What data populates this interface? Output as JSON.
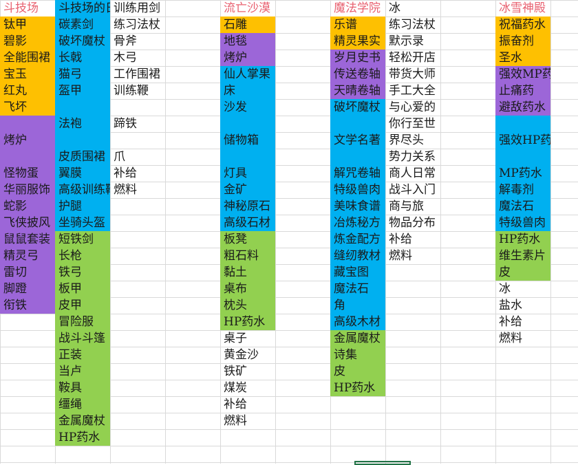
{
  "columns": [
    {
      "cells": [
        {
          "text": "斗技场",
          "hdr": true
        },
        {
          "text": "钛甲",
          "c": "y"
        },
        {
          "text": "碧影",
          "c": "y"
        },
        {
          "text": "全能围裙",
          "c": "y"
        },
        {
          "text": "宝玉",
          "c": "y"
        },
        {
          "text": "红丸",
          "c": "y"
        },
        {
          "text": "飞坏",
          "c": "y"
        },
        {
          "text": "烤炉",
          "c": "p",
          "span": 3
        },
        {
          "text": "怪物蛋",
          "c": "p"
        },
        {
          "text": "华丽服饰",
          "c": "p"
        },
        {
          "text": "蛇影",
          "c": "p"
        },
        {
          "text": "飞侠披风",
          "c": "p"
        },
        {
          "text": "鼠鼠套装",
          "c": "p"
        },
        {
          "text": "精灵弓",
          "c": "p"
        },
        {
          "text": "雷切",
          "c": "p"
        },
        {
          "text": "脚蹬",
          "c": "p"
        },
        {
          "text": "衔铁",
          "c": "p"
        }
      ]
    },
    {
      "cells": [
        {
          "text": "斗技场的日落",
          "c": "b"
        },
        {
          "text": "碳素剑",
          "c": "b"
        },
        {
          "text": "破坏魔杖",
          "c": "b"
        },
        {
          "text": "长戟",
          "c": "b"
        },
        {
          "text": "猫弓",
          "c": "b"
        },
        {
          "text": "盔甲",
          "c": "b"
        },
        {
          "text": "法袍",
          "c": "b",
          "span": 3
        },
        {
          "text": "皮质围裙",
          "c": "b"
        },
        {
          "text": "翼膜",
          "c": "b"
        },
        {
          "text": "高级训练鞭",
          "c": "b"
        },
        {
          "text": "护腿",
          "c": "b"
        },
        {
          "text": "坐骑头盔",
          "c": "b"
        },
        {
          "text": "短铁剑",
          "c": "g"
        },
        {
          "text": "长枪",
          "c": "g"
        },
        {
          "text": "铁弓",
          "c": "g"
        },
        {
          "text": "板甲",
          "c": "g"
        },
        {
          "text": "皮甲",
          "c": "g"
        },
        {
          "text": "冒险服",
          "c": "g"
        },
        {
          "text": "战斗斗篷",
          "c": "g"
        },
        {
          "text": "正装",
          "c": "g"
        },
        {
          "text": "当卢",
          "c": "g"
        },
        {
          "text": "鞍具",
          "c": "g"
        },
        {
          "text": "缰绳",
          "c": "g"
        },
        {
          "text": "金属魔杖",
          "c": "g"
        },
        {
          "text": "HP药水",
          "c": "g"
        }
      ]
    },
    {
      "cells": [
        {
          "text": "训练用剑"
        },
        {
          "text": "练习法杖"
        },
        {
          "text": "骨斧"
        },
        {
          "text": "木弓"
        },
        {
          "text": "工作围裙"
        },
        {
          "text": "训练鞭"
        },
        {
          "text": "蹄铁",
          "span": 3
        },
        {
          "text": "爪"
        },
        {
          "text": "补给"
        },
        {
          "text": "燃料"
        }
      ]
    },
    {
      "cells": []
    },
    {
      "cells": [
        {
          "text": "流亡沙漠",
          "hdr": true
        },
        {
          "text": "石雕",
          "c": "y"
        },
        {
          "text": "地毯",
          "c": "p"
        },
        {
          "text": "烤炉",
          "c": "p"
        },
        {
          "text": "仙人掌果",
          "c": "b"
        },
        {
          "text": "床",
          "c": "b"
        },
        {
          "text": "沙发",
          "c": "b"
        },
        {
          "text": "储物箱",
          "c": "b",
          "span": 3
        },
        {
          "text": "灯具",
          "c": "b"
        },
        {
          "text": "金矿",
          "c": "b"
        },
        {
          "text": "神秘原石",
          "c": "b"
        },
        {
          "text": "高级石材",
          "c": "b"
        },
        {
          "text": "板凳",
          "c": "g"
        },
        {
          "text": "粗石料",
          "c": "g"
        },
        {
          "text": "黏土",
          "c": "g"
        },
        {
          "text": "桌布",
          "c": "g"
        },
        {
          "text": "枕头",
          "c": "g"
        },
        {
          "text": "HP药水",
          "c": "g"
        },
        {
          "text": "桌子"
        },
        {
          "text": "黄金沙"
        },
        {
          "text": "铁矿"
        },
        {
          "text": "煤炭"
        },
        {
          "text": "补给"
        },
        {
          "text": "燃料"
        }
      ]
    },
    {
      "cells": []
    },
    {
      "cells": [
        {
          "text": "魔法学院",
          "hdr": true
        },
        {
          "text": "乐谱",
          "c": "y"
        },
        {
          "text": "精灵果实",
          "c": "y"
        },
        {
          "text": "岁月史书",
          "c": "p"
        },
        {
          "text": "传送卷轴",
          "c": "p"
        },
        {
          "text": "天晴卷轴",
          "c": "p"
        },
        {
          "text": "破坏魔杖",
          "c": "b"
        },
        {
          "text": "文学名著",
          "c": "b",
          "span": 3
        },
        {
          "text": "解咒卷轴",
          "c": "b"
        },
        {
          "text": "特级兽肉",
          "c": "b"
        },
        {
          "text": "美味食谱",
          "c": "b"
        },
        {
          "text": "冶炼秘方",
          "c": "b"
        },
        {
          "text": "炼金配方",
          "c": "b"
        },
        {
          "text": "缝纫教材",
          "c": "b"
        },
        {
          "text": "藏宝图",
          "c": "b"
        },
        {
          "text": "魔法石",
          "c": "b"
        },
        {
          "text": "角",
          "c": "b"
        },
        {
          "text": "高级木材",
          "c": "b"
        },
        {
          "text": "金属魔杖",
          "c": "g"
        },
        {
          "text": "诗集",
          "c": "g"
        },
        {
          "text": "皮",
          "c": "g"
        },
        {
          "text": "HP药水",
          "c": "g"
        }
      ]
    },
    {
      "cells": [
        {
          "text": "冰"
        },
        {
          "text": "练习法杖"
        },
        {
          "text": "默示录"
        },
        {
          "text": "轻松开店"
        },
        {
          "text": "带货大师"
        },
        {
          "text": "手工大全"
        },
        {
          "text": "与心爱的你行至世界尽头",
          "span": 3,
          "multi": true
        },
        {
          "text": "势力关系"
        },
        {
          "text": "商人日常"
        },
        {
          "text": "战斗入门"
        },
        {
          "text": "商与旅"
        },
        {
          "text": "物品分布"
        },
        {
          "text": "补给"
        },
        {
          "text": "燃料"
        }
      ]
    },
    {
      "cells": []
    },
    {
      "cells": [
        {
          "text": "冰雪神殿",
          "hdr": true
        },
        {
          "text": "祝福药水",
          "c": "y"
        },
        {
          "text": "振奋剂",
          "c": "y"
        },
        {
          "text": "圣水",
          "c": "y"
        },
        {
          "text": "强效MP药水",
          "c": "p"
        },
        {
          "text": "止痛药",
          "c": "p"
        },
        {
          "text": "避敌药水",
          "c": "p"
        },
        {
          "text": "强效HP药水",
          "c": "b",
          "span": 3
        },
        {
          "text": "MP药水",
          "c": "b"
        },
        {
          "text": "解毒剂",
          "c": "b"
        },
        {
          "text": "魔法石",
          "c": "b"
        },
        {
          "text": "特级兽肉",
          "c": "b"
        },
        {
          "text": "HP药水",
          "c": "g"
        },
        {
          "text": "维生素片",
          "c": "g"
        },
        {
          "text": "皮",
          "c": "g"
        },
        {
          "text": "冰"
        },
        {
          "text": "盐水"
        },
        {
          "text": "补给"
        },
        {
          "text": "燃料"
        }
      ]
    }
  ]
}
